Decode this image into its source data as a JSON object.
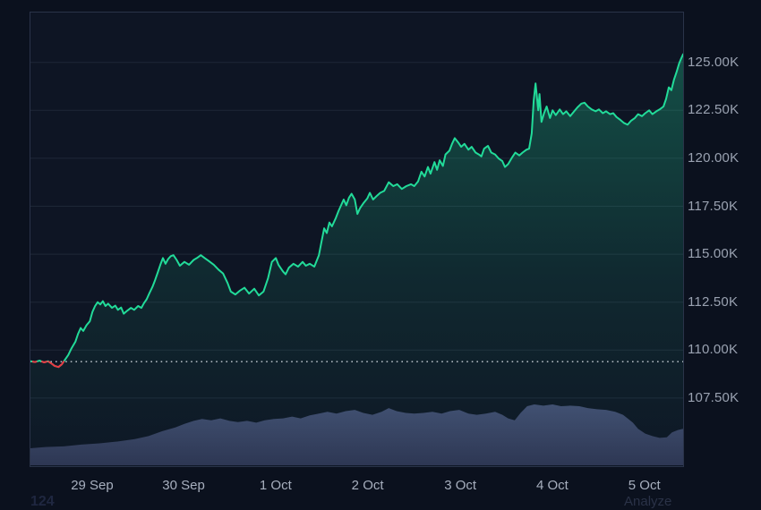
{
  "colors": {
    "background": "#0b111e",
    "plot_background": "#0e1524",
    "plot_border": "#2a3349",
    "grid": "#1e2737",
    "line_up": "#22db99",
    "line_down": "#ea3943",
    "fill_top": "rgba(34,219,153,0.30)",
    "fill_mid": "rgba(34,219,153,0.10)",
    "fill_bottom": "rgba(34,219,153,0.01)",
    "baseline_dots": "rgba(230,236,244,0.85)",
    "volume_top": "#454e74",
    "volume_bottom": "#2f3755",
    "y_label": "#9aa2b1",
    "x_label": "#a7afbe"
  },
  "footer": {
    "left_clipped_text": "124",
    "right_clipped_text": "Analyze"
  },
  "chart_data": {
    "type": "line",
    "title": "",
    "xlabel": "",
    "ylabel": "",
    "legend": "none",
    "grid": "horizontal-only",
    "ylim": [
      103950,
      127600
    ],
    "baseline_value": 109400,
    "baseline_style": "dotted",
    "y_ticks": [
      {
        "label": "125.00K",
        "value": 125000
      },
      {
        "label": "122.50K",
        "value": 122500
      },
      {
        "label": "120.00K",
        "value": 120000
      },
      {
        "label": "117.50K",
        "value": 117500
      },
      {
        "label": "115.00K",
        "value": 115000
      },
      {
        "label": "112.50K",
        "value": 112500
      },
      {
        "label": "110.00K",
        "value": 110000
      },
      {
        "label": "107.50K",
        "value": 107500
      }
    ],
    "x_ticks": [
      {
        "label": "29 Sep",
        "t": 0.096
      },
      {
        "label": "30 Sep",
        "t": 0.236
      },
      {
        "label": "1 Oct",
        "t": 0.377
      },
      {
        "label": "2 Oct",
        "t": 0.518
      },
      {
        "label": "3 Oct",
        "t": 0.66
      },
      {
        "label": "4 Oct",
        "t": 0.801
      },
      {
        "label": "5 Oct",
        "t": 0.942
      }
    ],
    "price_series": [
      [
        0.0,
        109420
      ],
      [
        0.007,
        109380
      ],
      [
        0.014,
        109450
      ],
      [
        0.021,
        109360
      ],
      [
        0.027,
        109420
      ],
      [
        0.033,
        109280
      ],
      [
        0.037,
        109180
      ],
      [
        0.043,
        109120
      ],
      [
        0.048,
        109260
      ],
      [
        0.052,
        109450
      ],
      [
        0.058,
        109750
      ],
      [
        0.063,
        110100
      ],
      [
        0.069,
        110450
      ],
      [
        0.073,
        110850
      ],
      [
        0.077,
        111150
      ],
      [
        0.081,
        111000
      ],
      [
        0.086,
        111300
      ],
      [
        0.091,
        111500
      ],
      [
        0.095,
        112000
      ],
      [
        0.099,
        112300
      ],
      [
        0.103,
        112500
      ],
      [
        0.107,
        112380
      ],
      [
        0.111,
        112550
      ],
      [
        0.115,
        112300
      ],
      [
        0.119,
        112420
      ],
      [
        0.125,
        112200
      ],
      [
        0.13,
        112320
      ],
      [
        0.134,
        112100
      ],
      [
        0.139,
        112220
      ],
      [
        0.143,
        111900
      ],
      [
        0.148,
        112050
      ],
      [
        0.154,
        112200
      ],
      [
        0.159,
        112100
      ],
      [
        0.165,
        112300
      ],
      [
        0.17,
        112200
      ],
      [
        0.174,
        112450
      ],
      [
        0.178,
        112650
      ],
      [
        0.182,
        112950
      ],
      [
        0.187,
        113300
      ],
      [
        0.191,
        113650
      ],
      [
        0.195,
        114050
      ],
      [
        0.199,
        114450
      ],
      [
        0.203,
        114800
      ],
      [
        0.207,
        114500
      ],
      [
        0.211,
        114750
      ],
      [
        0.215,
        114900
      ],
      [
        0.219,
        114950
      ],
      [
        0.224,
        114700
      ],
      [
        0.229,
        114400
      ],
      [
        0.236,
        114600
      ],
      [
        0.243,
        114450
      ],
      [
        0.25,
        114700
      ],
      [
        0.255,
        114800
      ],
      [
        0.261,
        114950
      ],
      [
        0.267,
        114800
      ],
      [
        0.273,
        114650
      ],
      [
        0.281,
        114450
      ],
      [
        0.288,
        114200
      ],
      [
        0.295,
        114000
      ],
      [
        0.302,
        113500
      ],
      [
        0.307,
        113050
      ],
      [
        0.314,
        112900
      ],
      [
        0.321,
        113100
      ],
      [
        0.328,
        113250
      ],
      [
        0.335,
        112950
      ],
      [
        0.343,
        113200
      ],
      [
        0.35,
        112850
      ],
      [
        0.357,
        113050
      ],
      [
        0.364,
        113750
      ],
      [
        0.37,
        114600
      ],
      [
        0.376,
        114800
      ],
      [
        0.38,
        114450
      ],
      [
        0.387,
        114100
      ],
      [
        0.391,
        113950
      ],
      [
        0.396,
        114300
      ],
      [
        0.403,
        114500
      ],
      [
        0.41,
        114350
      ],
      [
        0.417,
        114600
      ],
      [
        0.422,
        114400
      ],
      [
        0.428,
        114500
      ],
      [
        0.435,
        114350
      ],
      [
        0.442,
        114950
      ],
      [
        0.446,
        115650
      ],
      [
        0.45,
        116350
      ],
      [
        0.454,
        116100
      ],
      [
        0.458,
        116650
      ],
      [
        0.462,
        116450
      ],
      [
        0.468,
        116900
      ],
      [
        0.472,
        117250
      ],
      [
        0.476,
        117550
      ],
      [
        0.48,
        117850
      ],
      [
        0.484,
        117550
      ],
      [
        0.488,
        117950
      ],
      [
        0.492,
        118150
      ],
      [
        0.497,
        117850
      ],
      [
        0.501,
        117100
      ],
      [
        0.505,
        117400
      ],
      [
        0.51,
        117650
      ],
      [
        0.516,
        117900
      ],
      [
        0.52,
        118200
      ],
      [
        0.525,
        117850
      ],
      [
        0.531,
        118050
      ],
      [
        0.536,
        118200
      ],
      [
        0.542,
        118300
      ],
      [
        0.549,
        118750
      ],
      [
        0.556,
        118550
      ],
      [
        0.562,
        118650
      ],
      [
        0.569,
        118400
      ],
      [
        0.576,
        118550
      ],
      [
        0.583,
        118650
      ],
      [
        0.588,
        118550
      ],
      [
        0.594,
        118800
      ],
      [
        0.599,
        119300
      ],
      [
        0.604,
        119050
      ],
      [
        0.609,
        119550
      ],
      [
        0.613,
        119200
      ],
      [
        0.619,
        119800
      ],
      [
        0.623,
        119400
      ],
      [
        0.627,
        119900
      ],
      [
        0.632,
        119600
      ],
      [
        0.636,
        120200
      ],
      [
        0.642,
        120400
      ],
      [
        0.646,
        120750
      ],
      [
        0.65,
        121050
      ],
      [
        0.656,
        120800
      ],
      [
        0.66,
        120600
      ],
      [
        0.665,
        120750
      ],
      [
        0.671,
        120450
      ],
      [
        0.676,
        120600
      ],
      [
        0.682,
        120300
      ],
      [
        0.687,
        120200
      ],
      [
        0.691,
        120100
      ],
      [
        0.695,
        120500
      ],
      [
        0.701,
        120650
      ],
      [
        0.706,
        120300
      ],
      [
        0.712,
        120200
      ],
      [
        0.717,
        120000
      ],
      [
        0.723,
        119850
      ],
      [
        0.727,
        119550
      ],
      [
        0.732,
        119700
      ],
      [
        0.738,
        120050
      ],
      [
        0.743,
        120300
      ],
      [
        0.749,
        120150
      ],
      [
        0.754,
        120300
      ],
      [
        0.76,
        120450
      ],
      [
        0.764,
        120500
      ],
      [
        0.768,
        121300
      ],
      [
        0.771,
        123000
      ],
      [
        0.774,
        123900
      ],
      [
        0.778,
        122500
      ],
      [
        0.78,
        123350
      ],
      [
        0.783,
        121900
      ],
      [
        0.787,
        122350
      ],
      [
        0.791,
        122700
      ],
      [
        0.796,
        122100
      ],
      [
        0.8,
        122500
      ],
      [
        0.805,
        122250
      ],
      [
        0.811,
        122550
      ],
      [
        0.816,
        122300
      ],
      [
        0.821,
        122450
      ],
      [
        0.827,
        122200
      ],
      [
        0.833,
        122450
      ],
      [
        0.838,
        122650
      ],
      [
        0.844,
        122850
      ],
      [
        0.849,
        122900
      ],
      [
        0.854,
        122700
      ],
      [
        0.86,
        122550
      ],
      [
        0.866,
        122450
      ],
      [
        0.871,
        122550
      ],
      [
        0.877,
        122350
      ],
      [
        0.882,
        122450
      ],
      [
        0.888,
        122300
      ],
      [
        0.893,
        122350
      ],
      [
        0.898,
        122150
      ],
      [
        0.904,
        122000
      ],
      [
        0.909,
        121850
      ],
      [
        0.915,
        121750
      ],
      [
        0.92,
        121950
      ],
      [
        0.926,
        122100
      ],
      [
        0.931,
        122300
      ],
      [
        0.937,
        122200
      ],
      [
        0.942,
        122350
      ],
      [
        0.948,
        122500
      ],
      [
        0.953,
        122300
      ],
      [
        0.959,
        122450
      ],
      [
        0.964,
        122550
      ],
      [
        0.97,
        122700
      ],
      [
        0.974,
        123100
      ],
      [
        0.978,
        123700
      ],
      [
        0.982,
        123550
      ],
      [
        0.986,
        124100
      ],
      [
        0.99,
        124500
      ],
      [
        0.994,
        124950
      ],
      [
        0.997,
        125200
      ],
      [
        1.0,
        125420
      ]
    ],
    "volume_series_relative": [
      [
        0.0,
        0.28
      ],
      [
        0.023,
        0.3
      ],
      [
        0.051,
        0.31
      ],
      [
        0.078,
        0.34
      ],
      [
        0.106,
        0.36
      ],
      [
        0.133,
        0.39
      ],
      [
        0.16,
        0.43
      ],
      [
        0.181,
        0.48
      ],
      [
        0.202,
        0.56
      ],
      [
        0.222,
        0.62
      ],
      [
        0.236,
        0.68
      ],
      [
        0.25,
        0.73
      ],
      [
        0.263,
        0.76
      ],
      [
        0.277,
        0.74
      ],
      [
        0.291,
        0.77
      ],
      [
        0.305,
        0.73
      ],
      [
        0.318,
        0.71
      ],
      [
        0.332,
        0.73
      ],
      [
        0.346,
        0.7
      ],
      [
        0.359,
        0.74
      ],
      [
        0.373,
        0.76
      ],
      [
        0.387,
        0.77
      ],
      [
        0.401,
        0.8
      ],
      [
        0.414,
        0.77
      ],
      [
        0.428,
        0.82
      ],
      [
        0.442,
        0.85
      ],
      [
        0.455,
        0.88
      ],
      [
        0.469,
        0.85
      ],
      [
        0.483,
        0.89
      ],
      [
        0.497,
        0.91
      ],
      [
        0.51,
        0.86
      ],
      [
        0.524,
        0.83
      ],
      [
        0.538,
        0.88
      ],
      [
        0.549,
        0.94
      ],
      [
        0.561,
        0.89
      ],
      [
        0.575,
        0.86
      ],
      [
        0.588,
        0.85
      ],
      [
        0.602,
        0.86
      ],
      [
        0.616,
        0.88
      ],
      [
        0.63,
        0.85
      ],
      [
        0.643,
        0.89
      ],
      [
        0.657,
        0.91
      ],
      [
        0.671,
        0.85
      ],
      [
        0.684,
        0.83
      ],
      [
        0.698,
        0.85
      ],
      [
        0.712,
        0.88
      ],
      [
        0.723,
        0.83
      ],
      [
        0.732,
        0.77
      ],
      [
        0.742,
        0.74
      ],
      [
        0.751,
        0.86
      ],
      [
        0.761,
        0.97
      ],
      [
        0.772,
        1.0
      ],
      [
        0.786,
        0.98
      ],
      [
        0.8,
        1.0
      ],
      [
        0.813,
        0.97
      ],
      [
        0.827,
        0.98
      ],
      [
        0.841,
        0.97
      ],
      [
        0.854,
        0.94
      ],
      [
        0.868,
        0.92
      ],
      [
        0.882,
        0.91
      ],
      [
        0.896,
        0.88
      ],
      [
        0.908,
        0.83
      ],
      [
        0.915,
        0.77
      ],
      [
        0.923,
        0.7
      ],
      [
        0.931,
        0.6
      ],
      [
        0.942,
        0.52
      ],
      [
        0.953,
        0.48
      ],
      [
        0.964,
        0.45
      ],
      [
        0.975,
        0.46
      ],
      [
        0.983,
        0.54
      ],
      [
        0.992,
        0.58
      ],
      [
        1.0,
        0.6
      ]
    ]
  }
}
